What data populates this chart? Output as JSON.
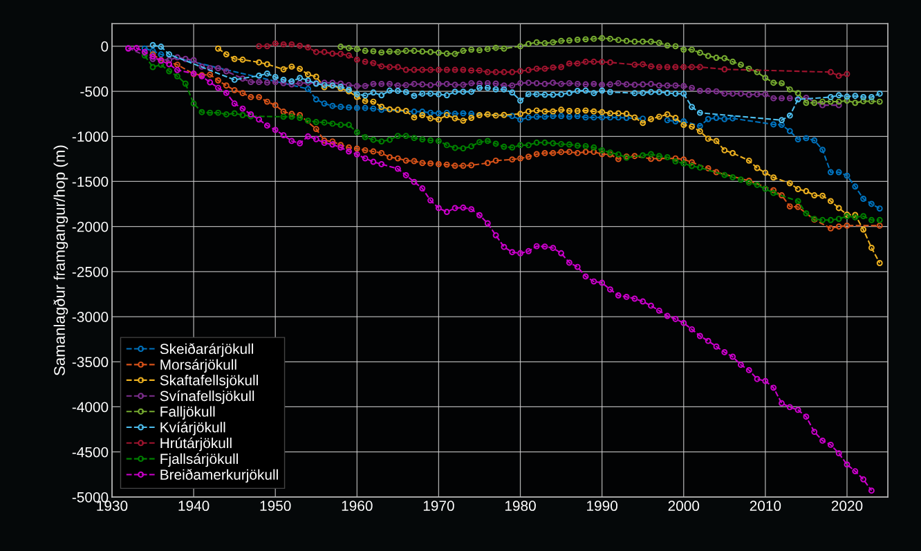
{
  "chart_data": {
    "type": "line",
    "ylabel": "Samanlagður framgangur/hop (m)",
    "xlim": [
      1930,
      2025
    ],
    "xticks": [
      1930,
      1940,
      1950,
      1960,
      1970,
      1980,
      1990,
      2000,
      2010,
      2020
    ],
    "ylim": [
      -5000,
      250
    ],
    "yticks": [
      -5000,
      -4500,
      -4000,
      -3500,
      -3000,
      -2500,
      -2000,
      -1500,
      -1000,
      -500,
      0
    ],
    "grid": true,
    "legend": "bottom left",
    "marker": "circle",
    "line_style": "dashed",
    "series": [
      {
        "name": "Skeiðarárjökull",
        "color": "#0072bd",
        "x": [
          1934,
          1935,
          1936,
          1954,
          1955,
          1956,
          1957,
          1958,
          1959,
          1960,
          1961,
          1962,
          1963,
          1967,
          1968,
          1969,
          1970,
          1971,
          1972,
          1973,
          1974,
          1979,
          1980,
          1981,
          1982,
          1983,
          1984,
          1985,
          1986,
          1987,
          1988,
          1989,
          1990,
          1991,
          1992,
          1993,
          1995,
          1996,
          1998,
          1999,
          2000,
          2002,
          2003,
          2004,
          2005,
          2006,
          2011,
          2012,
          2013,
          2014,
          2015,
          2016,
          2017,
          2018,
          2019,
          2020,
          2021,
          2022,
          2023,
          2024
        ],
        "values": [
          -26,
          -51,
          -90,
          -474,
          -590,
          -636,
          -662,
          -672,
          -679,
          -685,
          -685,
          -692,
          -705,
          -726,
          -726,
          -738,
          -744,
          -738,
          -749,
          -744,
          -749,
          -774,
          -815,
          -790,
          -782,
          -782,
          -774,
          -774,
          -782,
          -774,
          -790,
          -790,
          -790,
          -790,
          -790,
          -795,
          -803,
          null,
          -820,
          -833,
          -833,
          -885,
          -808,
          -795,
          -808,
          -800,
          -867,
          -872,
          -941,
          -1033,
          -1020,
          -1044,
          -1149,
          -1397,
          -1397,
          -1436,
          -1556,
          -1692,
          -1749,
          -1800
        ]
      },
      {
        "name": "Morsárjökull",
        "color": "#d95319",
        "x": [
          1935,
          1936,
          1938,
          1940,
          1941,
          1942,
          1943,
          1944,
          1945,
          1946,
          1947,
          1948,
          1949,
          1950,
          1951,
          1952,
          1953,
          1955,
          1956,
          1957,
          1958,
          1959,
          1960,
          1961,
          1962,
          1963,
          1964,
          1965,
          1966,
          1967,
          1968,
          1969,
          1970,
          1971,
          1972,
          1973,
          1974,
          1976,
          1977,
          1979,
          1980,
          1981,
          1982,
          1983,
          1984,
          1985,
          1986,
          1987,
          1988,
          1989,
          1990,
          1991,
          1992,
          1993,
          1994,
          1996,
          1997,
          1999,
          2000,
          2001,
          2003,
          2004,
          2008,
          2011,
          2012,
          2013,
          2014,
          2016,
          2018,
          2019,
          2020,
          2024
        ],
        "values": [
          -90,
          -154,
          -205,
          -308,
          -320,
          -315,
          -379,
          -436,
          -487,
          -520,
          -564,
          -564,
          -615,
          -654,
          -726,
          -751,
          -764,
          -918,
          -1046,
          -1056,
          -1095,
          -1123,
          -1136,
          -1154,
          -1167,
          -1185,
          -1231,
          -1244,
          -1269,
          -1274,
          -1295,
          -1300,
          -1308,
          -1313,
          -1326,
          -1326,
          -1320,
          -1295,
          -1269,
          -1256,
          -1244,
          -1226,
          -1197,
          -1185,
          -1185,
          -1174,
          -1172,
          -1185,
          -1172,
          -1172,
          -1197,
          -1200,
          -1251,
          -1223,
          -1218,
          -1249,
          -1244,
          -1244,
          -1256,
          -1287,
          -1354,
          -1397,
          -1492,
          -1597,
          -1654,
          -1777,
          -1782,
          -1923,
          -2020,
          -2000,
          -1990,
          -1990
        ]
      },
      {
        "name": "Skaftafellsjökull",
        "color": "#edb120",
        "x": [
          1943,
          1944,
          1945,
          1946,
          1948,
          1949,
          1951,
          1952,
          1953,
          1954,
          1955,
          1956,
          1957,
          1958,
          1959,
          1960,
          1961,
          1962,
          1963,
          1964,
          1965,
          1966,
          1967,
          1968,
          1969,
          1970,
          1971,
          1972,
          1973,
          1974,
          1975,
          1976,
          1977,
          1978,
          1980,
          1981,
          1982,
          1983,
          1984,
          1985,
          1986,
          1987,
          1988,
          1989,
          1990,
          1991,
          1992,
          1993,
          1994,
          1995,
          1996,
          1997,
          1998,
          1999,
          2000,
          2001,
          2002,
          2003,
          2004,
          2005,
          2006,
          2008,
          2009,
          2010,
          2011,
          2013,
          2014,
          2015,
          2016,
          2017,
          2018,
          2019,
          2020,
          2021,
          2022,
          2023,
          2024
        ],
        "values": [
          -26,
          -90,
          -141,
          -149,
          -179,
          -200,
          -256,
          -226,
          -251,
          -313,
          -338,
          -454,
          -436,
          -467,
          -500,
          -564,
          -608,
          -615,
          -672,
          -700,
          -705,
          -718,
          -790,
          -764,
          -800,
          -813,
          -764,
          -800,
          -826,
          -795,
          -764,
          -756,
          -769,
          -762,
          -751,
          -723,
          -713,
          -723,
          -723,
          -705,
          -718,
          -718,
          -713,
          -723,
          -731,
          -744,
          -744,
          -749,
          -790,
          -851,
          -808,
          -782,
          -756,
          -795,
          -872,
          -892,
          -944,
          -1026,
          -1051,
          -1154,
          -1185,
          -1269,
          -1351,
          -1403,
          -1456,
          -1520,
          -1585,
          -1608,
          -1654,
          -1659,
          -1718,
          -1795,
          -1867,
          -1872,
          -2033,
          -2236,
          -2405
        ]
      },
      {
        "name": "Svínafellsjökull",
        "color": "#7e2f8e",
        "x": [
          1932,
          1935,
          1937,
          1938,
          1939,
          1940,
          1941,
          1942,
          1943,
          1944,
          1946,
          1947,
          1948,
          1949,
          1950,
          1951,
          1952,
          1953,
          1954,
          1955,
          1956,
          1957,
          1958,
          1959,
          1960,
          1961,
          1962,
          1963,
          1964,
          1965,
          1966,
          1967,
          1968,
          1969,
          1970,
          1971,
          1972,
          1973,
          1974,
          1975,
          1976,
          1977,
          1978,
          1979,
          1980,
          1981,
          1982,
          1983,
          1984,
          1985,
          1986,
          1987,
          1988,
          1989,
          1990,
          1991,
          1992,
          1993,
          1994,
          1995,
          1996,
          1997,
          1998,
          1999,
          2000,
          2001,
          2002,
          2003,
          2004,
          2005,
          2006,
          2007,
          2008,
          2009,
          2010,
          2011,
          2012,
          2013,
          2015,
          2017,
          2019
        ],
        "values": [
          -20,
          -141,
          -154,
          -123,
          -141,
          -154,
          -226,
          -244,
          -244,
          -277,
          -359,
          -397,
          -397,
          -403,
          -397,
          -410,
          -423,
          -410,
          -405,
          -410,
          -405,
          -405,
          -415,
          -431,
          -441,
          -441,
          -418,
          -418,
          -418,
          -436,
          -431,
          -418,
          -423,
          -431,
          -418,
          -418,
          -428,
          -428,
          -410,
          -415,
          -410,
          -415,
          -436,
          -436,
          -410,
          -405,
          -410,
          -418,
          -405,
          -418,
          -410,
          -418,
          -423,
          -418,
          -428,
          -423,
          -410,
          -423,
          -428,
          -423,
          -418,
          -436,
          -436,
          -436,
          -441,
          -462,
          -495,
          -495,
          -500,
          -526,
          -526,
          -526,
          -538,
          -533,
          -533,
          -577,
          -577,
          -577,
          -572,
          -654,
          -654
        ]
      },
      {
        "name": "Falljökull",
        "color": "#77ac30",
        "x": [
          1958,
          1959,
          1960,
          1961,
          1962,
          1963,
          1964,
          1965,
          1966,
          1967,
          1968,
          1969,
          1970,
          1971,
          1972,
          1973,
          1974,
          1975,
          1976,
          1977,
          1978,
          1980,
          1981,
          1982,
          1983,
          1984,
          1985,
          1986,
          1987,
          1988,
          1989,
          1990,
          1991,
          1992,
          1993,
          1994,
          1995,
          1996,
          1997,
          1998,
          1999,
          2000,
          2001,
          2002,
          2003,
          2004,
          2005,
          2006,
          2007,
          2008,
          2009,
          2010,
          2011,
          2012,
          2013,
          2014,
          2015,
          2016,
          2017,
          2018,
          2019,
          2020,
          2021,
          2022,
          2023,
          2024
        ],
        "values": [
          -5,
          -20,
          -31,
          -51,
          -56,
          -69,
          -59,
          -64,
          -51,
          -51,
          -59,
          -64,
          -72,
          -82,
          -85,
          -51,
          -38,
          -44,
          -31,
          -18,
          -26,
          0,
          26,
          44,
          33,
          44,
          59,
          64,
          72,
          77,
          82,
          90,
          82,
          69,
          59,
          51,
          51,
          51,
          38,
          8,
          0,
          -38,
          -38,
          -72,
          -108,
          -128,
          -133,
          -172,
          -205,
          -249,
          -287,
          -351,
          -405,
          -410,
          -479,
          -520,
          -628,
          -628,
          -615,
          -615,
          -615,
          -603,
          -628,
          -610,
          -610,
          -615
        ]
      },
      {
        "name": "Kvíárjökull",
        "color": "#4dbeee",
        "x": [
          1935,
          1936,
          1937,
          1945,
          1948,
          1949,
          1950,
          1951,
          1952,
          1953,
          1954,
          1955,
          1956,
          1957,
          1958,
          1959,
          1960,
          1961,
          1962,
          1963,
          1964,
          1965,
          1966,
          1967,
          1968,
          1969,
          1970,
          1971,
          1972,
          1973,
          1974,
          1975,
          1976,
          1977,
          1978,
          1979,
          1980,
          1981,
          1982,
          1983,
          1984,
          1985,
          1986,
          1987,
          1988,
          1989,
          1990,
          1991,
          1994,
          1995,
          1996,
          1997,
          1998,
          1999,
          2000,
          2001,
          2002,
          2012,
          2013,
          2014,
          2018,
          2019,
          2020,
          2021,
          2022,
          2023,
          2024
        ],
        "values": [
          13,
          -5,
          -90,
          -372,
          -326,
          -303,
          -341,
          -372,
          -390,
          -351,
          -379,
          -415,
          -431,
          -436,
          -449,
          -482,
          -533,
          -546,
          -513,
          -544,
          -492,
          -495,
          -508,
          -551,
          -526,
          -526,
          -533,
          -544,
          -505,
          -505,
          -505,
          -462,
          -462,
          -479,
          -479,
          -513,
          -603,
          -531,
          -533,
          -538,
          -538,
          -533,
          -518,
          -495,
          -492,
          -520,
          -492,
          -508,
          -520,
          -518,
          -508,
          -508,
          -518,
          -526,
          -526,
          -674,
          -738,
          -820,
          -769,
          -590,
          -564,
          -544,
          -559,
          -551,
          -564,
          -564,
          -526
        ]
      },
      {
        "name": "Hrútárjökull",
        "color": "#a2142f",
        "x": [
          1948,
          1949,
          1950,
          1951,
          1952,
          1953,
          1954,
          1955,
          1956,
          1957,
          1958,
          1959,
          1960,
          1961,
          1962,
          1963,
          1964,
          1965,
          1966,
          1967,
          1968,
          1969,
          1970,
          1971,
          1972,
          1973,
          1974,
          1975,
          1976,
          1977,
          1978,
          1979,
          1980,
          1981,
          1982,
          1983,
          1984,
          1985,
          1986,
          1987,
          1988,
          1989,
          1990,
          1991,
          1994,
          1995,
          1996,
          1997,
          1998,
          1999,
          2000,
          2001,
          2002,
          2005,
          2018,
          2019,
          2020
        ],
        "values": [
          0,
          0,
          31,
          21,
          21,
          5,
          -13,
          -64,
          -64,
          -82,
          -85,
          -103,
          -149,
          -172,
          -187,
          -223,
          -231,
          -231,
          -262,
          -262,
          -262,
          -262,
          -262,
          -262,
          -262,
          -262,
          -269,
          -269,
          -287,
          -287,
          -287,
          -287,
          -277,
          -264,
          -249,
          -249,
          -236,
          -231,
          -192,
          -192,
          -172,
          -172,
          -174,
          -179,
          -205,
          -200,
          -223,
          -231,
          -231,
          -231,
          -231,
          -231,
          -231,
          -256,
          -287,
          -328,
          -308
        ]
      },
      {
        "name": "Fjallsárjökull",
        "color": "#008000",
        "x": [
          1934,
          1935,
          1936,
          1937,
          1938,
          1939,
          1940,
          1941,
          1942,
          1943,
          1944,
          1945,
          1946,
          1947,
          1951,
          1952,
          1953,
          1954,
          1955,
          1956,
          1957,
          1958,
          1959,
          1960,
          1961,
          1962,
          1963,
          1964,
          1965,
          1966,
          1967,
          1968,
          1969,
          1970,
          1971,
          1972,
          1973,
          1974,
          1975,
          1976,
          1977,
          1978,
          1979,
          1980,
          1981,
          1982,
          1983,
          1984,
          1985,
          1986,
          1987,
          1988,
          1989,
          1990,
          1991,
          1992,
          1993,
          1995,
          1996,
          1997,
          1998,
          1999,
          2000,
          2001,
          2002,
          2005,
          2006,
          2007,
          2008,
          2009,
          2010,
          2011,
          2014,
          2015,
          2016,
          2017,
          2018,
          2019,
          2020,
          2021,
          2022,
          2023,
          2024
        ],
        "values": [
          -103,
          -231,
          -205,
          -277,
          -333,
          -415,
          -636,
          -731,
          -738,
          -738,
          -756,
          -744,
          -764,
          -777,
          -782,
          -782,
          -795,
          -826,
          -841,
          -846,
          -859,
          -872,
          -872,
          -954,
          -1008,
          -1038,
          -1056,
          -1038,
          -995,
          -995,
          -1018,
          -1033,
          -1044,
          -1051,
          -1097,
          -1128,
          -1133,
          -1110,
          -1064,
          -1051,
          -1082,
          -1115,
          -1123,
          -1097,
          -1097,
          -1069,
          -1069,
          -1077,
          -1085,
          -1090,
          -1103,
          -1108,
          -1123,
          -1154,
          -1179,
          -1200,
          -1236,
          -1210,
          -1197,
          -1218,
          -1231,
          -1277,
          -1300,
          -1328,
          -1346,
          -1428,
          -1454,
          -1479,
          -1513,
          -1538,
          -1582,
          -1628,
          -1718,
          -1854,
          -1915,
          -1928,
          -1928,
          -1915,
          -1885,
          -1897,
          -1885,
          -1928,
          -1928
        ]
      },
      {
        "name": "Breiðamerkurjökull",
        "color": "#cc00cc",
        "x": [
          1932,
          1933,
          1934,
          1935,
          1936,
          1937,
          1938,
          1940,
          1941,
          1942,
          1943,
          1944,
          1945,
          1946,
          1947,
          1948,
          1949,
          1950,
          1951,
          1952,
          1953,
          1954,
          1955,
          1956,
          1957,
          1958,
          1959,
          1960,
          1961,
          1962,
          1963,
          1965,
          1966,
          1967,
          1968,
          1969,
          1970,
          1971,
          1972,
          1973,
          1974,
          1975,
          1976,
          1977,
          1978,
          1979,
          1980,
          1981,
          1982,
          1983,
          1984,
          1985,
          1986,
          1987,
          1988,
          1989,
          1990,
          1991,
          1992,
          1993,
          1994,
          1995,
          1996,
          1997,
          1998,
          1999,
          2000,
          2001,
          2002,
          2003,
          2004,
          2005,
          2006,
          2007,
          2008,
          2009,
          2010,
          2011,
          2012,
          2013,
          2014,
          2015,
          2016,
          2017,
          2018,
          2019,
          2020,
          2021,
          2022,
          2023
        ],
        "values": [
          -26,
          -20,
          -64,
          -115,
          -160,
          -200,
          -264,
          -303,
          -333,
          -400,
          -462,
          -518,
          -636,
          -692,
          -756,
          -813,
          -880,
          -928,
          -987,
          -1051,
          -1077,
          -1000,
          -1031,
          -1072,
          -1090,
          -1123,
          -1167,
          -1200,
          -1244,
          -1282,
          -1308,
          -1359,
          -1431,
          -1505,
          -1577,
          -1710,
          -1795,
          -1838,
          -1795,
          -1790,
          -1808,
          -1874,
          -1964,
          -2097,
          -2226,
          -2284,
          -2296,
          -2273,
          -2218,
          -2222,
          -2238,
          -2296,
          -2401,
          -2448,
          -2554,
          -2609,
          -2624,
          -2698,
          -2764,
          -2780,
          -2800,
          -2831,
          -2878,
          -2933,
          -2992,
          -3026,
          -3070,
          -3140,
          -3214,
          -3269,
          -3331,
          -3394,
          -3444,
          -3534,
          -3593,
          -3691,
          -3714,
          -3788,
          -3960,
          -4003,
          -4034,
          -4109,
          -4277,
          -4375,
          -4421,
          -4515,
          -4640,
          -4714,
          -4804,
          -4929
        ]
      }
    ]
  }
}
